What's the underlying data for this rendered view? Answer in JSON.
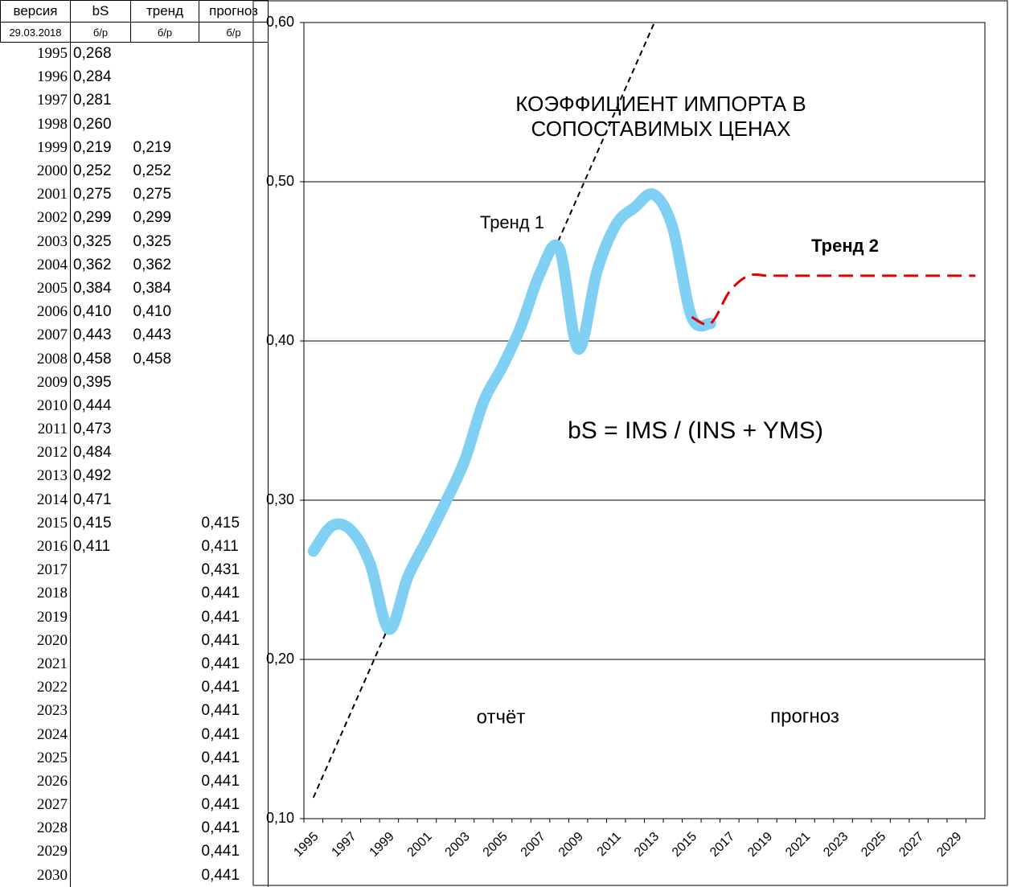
{
  "table": {
    "header": [
      "версия",
      "bS",
      "тренд",
      "прогноз"
    ],
    "units": [
      "29.03.2018",
      "б/р",
      "б/р",
      "б/р"
    ],
    "rows": [
      [
        "1995",
        "0,268",
        null,
        null
      ],
      [
        "1996",
        "0,284",
        null,
        null
      ],
      [
        "1997",
        "0,281",
        null,
        null
      ],
      [
        "1998",
        "0,260",
        null,
        null
      ],
      [
        "1999",
        "0,219",
        "0,219",
        null
      ],
      [
        "2000",
        "0,252",
        "0,252",
        null
      ],
      [
        "2001",
        "0,275",
        "0,275",
        null
      ],
      [
        "2002",
        "0,299",
        "0,299",
        null
      ],
      [
        "2003",
        "0,325",
        "0,325",
        null
      ],
      [
        "2004",
        "0,362",
        "0,362",
        null
      ],
      [
        "2005",
        "0,384",
        "0,384",
        null
      ],
      [
        "2006",
        "0,410",
        "0,410",
        null
      ],
      [
        "2007",
        "0,443",
        "0,443",
        null
      ],
      [
        "2008",
        "0,458",
        "0,458",
        null
      ],
      [
        "2009",
        "0,395",
        null,
        null
      ],
      [
        "2010",
        "0,444",
        null,
        null
      ],
      [
        "2011",
        "0,473",
        null,
        null
      ],
      [
        "2012",
        "0,484",
        null,
        null
      ],
      [
        "2013",
        "0,492",
        null,
        null
      ],
      [
        "2014",
        "0,471",
        null,
        null
      ],
      [
        "2015",
        "0,415",
        null,
        "0,415"
      ],
      [
        "2016",
        "0,411",
        null,
        "0,411"
      ],
      [
        "2017",
        null,
        null,
        "0,431"
      ],
      [
        "2018",
        null,
        null,
        "0,441"
      ],
      [
        "2019",
        null,
        null,
        "0,441"
      ],
      [
        "2020",
        null,
        null,
        "0,441"
      ],
      [
        "2021",
        null,
        null,
        "0,441"
      ],
      [
        "2022",
        null,
        null,
        "0,441"
      ],
      [
        "2023",
        null,
        null,
        "0,441"
      ],
      [
        "2024",
        null,
        null,
        "0,441"
      ],
      [
        "2025",
        null,
        null,
        "0,441"
      ],
      [
        "2026",
        null,
        null,
        "0,441"
      ],
      [
        "2027",
        null,
        null,
        "0,441"
      ],
      [
        "2028",
        null,
        null,
        "0,441"
      ],
      [
        "2029",
        null,
        null,
        "0,441"
      ],
      [
        "2030",
        null,
        null,
        "0,441"
      ]
    ]
  },
  "chart_data": {
    "type": "line",
    "title": [
      "КОЭФФИЦИЕНТ ИМПОРТА В",
      "СОПОСТАВИМЫХ ЦЕНАХ"
    ],
    "annotations": [
      "Тренд 1",
      "Тренд 2",
      "bS = IMS / (INS + YMS)",
      "отчёт",
      "прогноз"
    ],
    "x": [
      1995,
      null,
      1997,
      null,
      1999,
      null,
      2001,
      null,
      2003,
      null,
      2005,
      null,
      2007,
      null,
      2009,
      null,
      2011,
      null,
      2013,
      null,
      2015,
      null,
      2017,
      null,
      2019,
      null,
      2021,
      null,
      2023,
      null,
      2025,
      null,
      2027,
      null,
      2029,
      null
    ],
    "ylim": [
      0.1,
      0.6
    ],
    "yticks": [
      {
        "value": 0.1,
        "label": "0,10"
      },
      {
        "value": 0.2,
        "label": "0,20"
      },
      {
        "value": 0.3,
        "label": "0,30"
      },
      {
        "value": 0.4,
        "label": "0,40"
      },
      {
        "value": 0.5,
        "label": "0,50"
      },
      {
        "value": 0.6,
        "label": "0,60"
      }
    ],
    "grid": true,
    "series": [
      {
        "name": "bS",
        "color": "#80d0f4",
        "style": "solid",
        "values": [
          0.268,
          0.284,
          0.281,
          0.26,
          0.219,
          0.252,
          0.275,
          0.299,
          0.325,
          0.362,
          0.384,
          0.41,
          0.443,
          0.458,
          0.395,
          0.444,
          0.473,
          0.484,
          0.492,
          0.471,
          0.415,
          0.411,
          null,
          null,
          null,
          null,
          null,
          null,
          null,
          null,
          null,
          null,
          null,
          null,
          null,
          null
        ]
      },
      {
        "name": "тренд",
        "color": "#000000",
        "style": "trendline",
        "values": [
          null,
          null,
          null,
          null,
          0.219,
          0.252,
          0.275,
          0.299,
          0.325,
          0.362,
          0.384,
          0.41,
          0.443,
          0.458,
          null,
          null,
          null,
          null,
          null,
          null,
          null,
          null,
          null,
          null,
          null,
          null,
          null,
          null,
          null,
          null,
          null,
          null,
          null,
          null,
          null,
          null
        ]
      },
      {
        "name": "прогноз",
        "color": "#e00000",
        "style": "dashed",
        "values": [
          null,
          null,
          null,
          null,
          null,
          null,
          null,
          null,
          null,
          null,
          null,
          null,
          null,
          null,
          null,
          null,
          null,
          null,
          null,
          null,
          0.415,
          0.411,
          0.431,
          0.441,
          0.441,
          0.441,
          0.441,
          0.441,
          0.441,
          0.441,
          0.441,
          0.441,
          0.441,
          0.441,
          0.441,
          0.441
        ]
      }
    ]
  }
}
